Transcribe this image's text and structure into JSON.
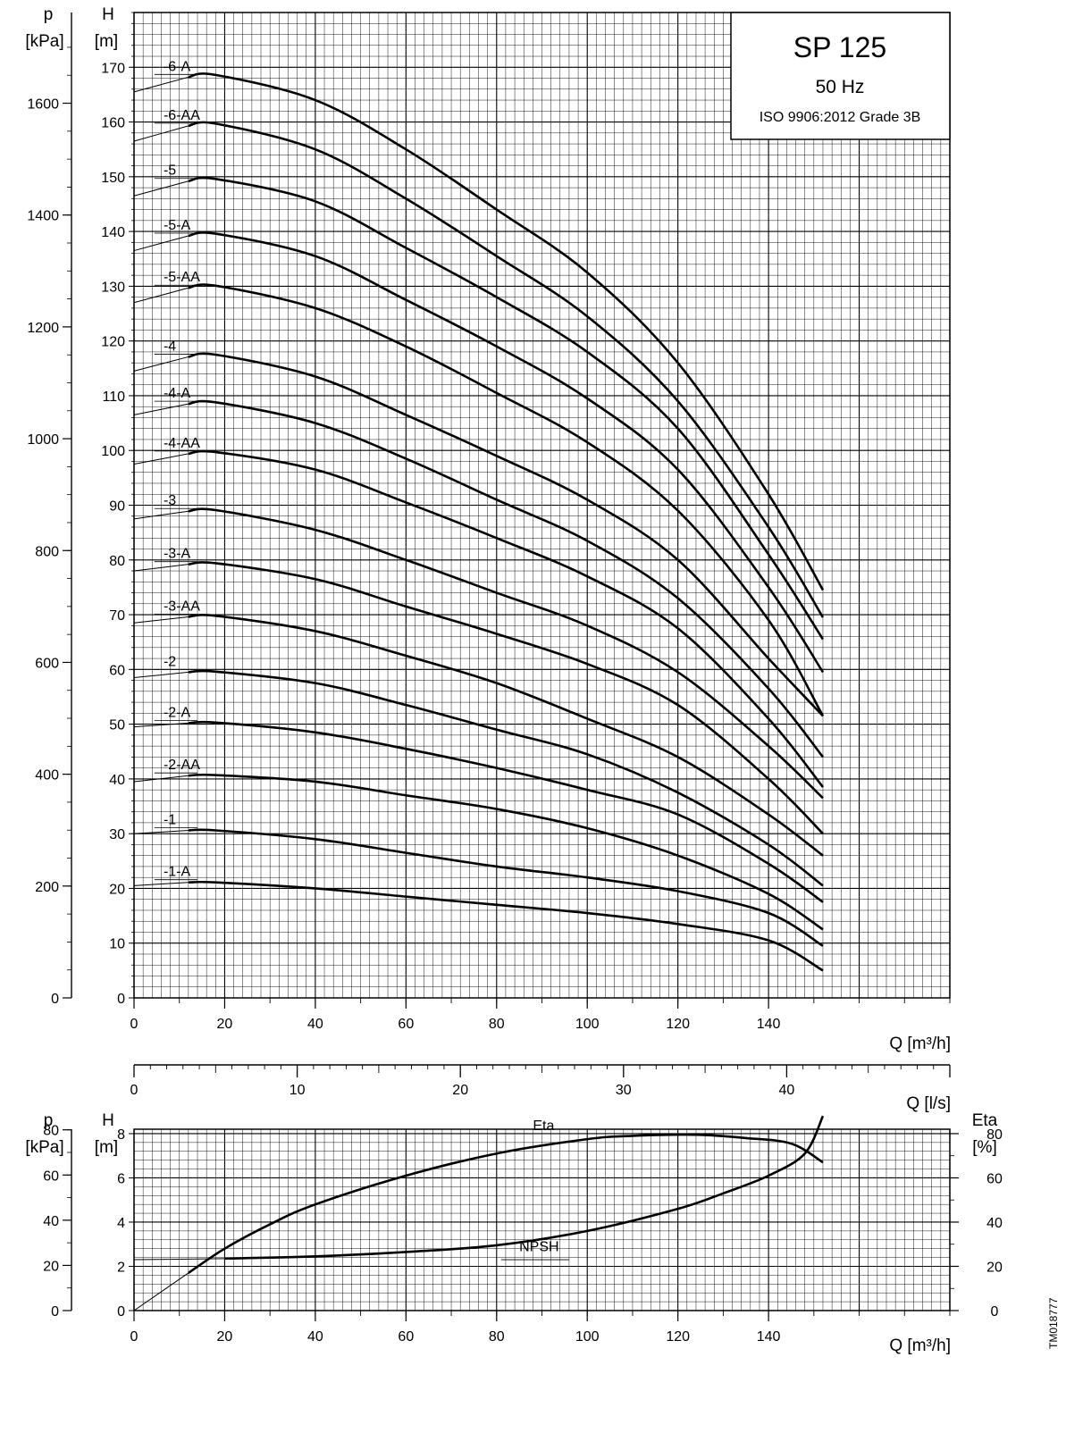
{
  "title_box": {
    "model": "SP 125",
    "frequency": "50 Hz",
    "standard": "ISO 9906:2012 Grade 3B"
  },
  "drawing_code": "TM018777",
  "axes": {
    "top": {
      "left_pressure": {
        "symbol": "p",
        "unit": "[kPa]",
        "ticks": [
          0,
          200,
          400,
          600,
          800,
          1000,
          1200,
          1400,
          1600
        ]
      },
      "head": {
        "symbol": "H",
        "unit": "[m]",
        "ticks": [
          0,
          10,
          20,
          30,
          40,
          50,
          60,
          70,
          80,
          90,
          100,
          110,
          120,
          130,
          140,
          150,
          160,
          170
        ],
        "range": [
          0,
          180
        ]
      },
      "x_flow": {
        "label": "Q [m³/h]",
        "ticks": [
          0,
          20,
          40,
          60,
          80,
          100,
          120,
          140
        ],
        "range": [
          0,
          180
        ]
      }
    },
    "middle": {
      "x_flow_ls": {
        "label": "Q [l/s]",
        "ticks": [
          0,
          10,
          20,
          30,
          40
        ],
        "range": [
          0,
          50
        ]
      }
    },
    "bottom": {
      "left_pressure": {
        "symbol": "p",
        "unit": "[kPa]",
        "ticks": [
          0,
          20,
          40,
          60,
          80
        ]
      },
      "head": {
        "symbol": "H",
        "unit": "[m]",
        "ticks": [
          0,
          2,
          4,
          6,
          8
        ],
        "range": [
          0,
          8.2
        ]
      },
      "right_eta": {
        "symbol": "Eta",
        "unit": "[%]",
        "ticks": [
          0,
          20,
          40,
          60,
          80
        ],
        "range": [
          0,
          82
        ]
      },
      "x_flow": {
        "label": "Q [m³/h]",
        "ticks": [
          0,
          20,
          40,
          60,
          80,
          100,
          120,
          140
        ],
        "range": [
          0,
          180
        ]
      }
    }
  },
  "chart_data": [
    {
      "type": "line",
      "grid": true,
      "xlabel": "Q [m³/h]",
      "ylabel": "H [m]",
      "xlim": [
        0,
        180
      ],
      "ylim": [
        0,
        180
      ],
      "series": [
        {
          "name": "-6-A",
          "points": [
            [
              0,
              165.5
            ],
            [
              12,
              168.2
            ],
            [
              18,
              168.6
            ],
            [
              40,
              164
            ],
            [
              60,
              155
            ],
            [
              80,
              144
            ],
            [
              100,
              132.5
            ],
            [
              120,
              116
            ],
            [
              140,
              92
            ],
            [
              152,
              74.5
            ]
          ]
        },
        {
          "name": "-6-AA",
          "points": [
            [
              0,
              156.5
            ],
            [
              12,
              159.3
            ],
            [
              18,
              159.7
            ],
            [
              40,
              155
            ],
            [
              60,
              146
            ],
            [
              80,
              135.5
            ],
            [
              100,
              124.5
            ],
            [
              120,
              109
            ],
            [
              140,
              86
            ],
            [
              152,
              69.5
            ]
          ]
        },
        {
          "name": "-5",
          "points": [
            [
              0,
              146.5
            ],
            [
              12,
              149.2
            ],
            [
              18,
              149.6
            ],
            [
              40,
              145.5
            ],
            [
              60,
              137
            ],
            [
              80,
              128
            ],
            [
              100,
              118
            ],
            [
              120,
              104
            ],
            [
              140,
              81
            ],
            [
              152,
              65.5
            ]
          ]
        },
        {
          "name": "-5-A",
          "points": [
            [
              0,
              136.5
            ],
            [
              12,
              139.2
            ],
            [
              18,
              139.6
            ],
            [
              40,
              135.5
            ],
            [
              60,
              127.5
            ],
            [
              80,
              119
            ],
            [
              100,
              109.5
            ],
            [
              120,
              96.5
            ],
            [
              140,
              75
            ],
            [
              152,
              59.5
            ]
          ]
        },
        {
          "name": "-5-AA",
          "points": [
            [
              0,
              127
            ],
            [
              12,
              129.7
            ],
            [
              18,
              130.1
            ],
            [
              40,
              126
            ],
            [
              60,
              119
            ],
            [
              80,
              110.5
            ],
            [
              100,
              101.5
            ],
            [
              120,
              89
            ],
            [
              140,
              69
            ],
            [
              152,
              51.5
            ]
          ]
        },
        {
          "name": "-4",
          "points": [
            [
              0,
              114.5
            ],
            [
              12,
              117.1
            ],
            [
              18,
              117.5
            ],
            [
              40,
              113.5
            ],
            [
              60,
              106.5
            ],
            [
              80,
              99
            ],
            [
              100,
              91
            ],
            [
              120,
              80
            ],
            [
              140,
              62
            ],
            [
              152,
              51.5
            ]
          ]
        },
        {
          "name": "-4-A",
          "points": [
            [
              0,
              106.5
            ],
            [
              12,
              108.5
            ],
            [
              18,
              108.8
            ],
            [
              40,
              105
            ],
            [
              60,
              98.5
            ],
            [
              80,
              91
            ],
            [
              100,
              83.5
            ],
            [
              120,
              73
            ],
            [
              140,
              56.5
            ],
            [
              152,
              44
            ]
          ]
        },
        {
          "name": "-4-AA",
          "points": [
            [
              0,
              97.5
            ],
            [
              12,
              99.4
            ],
            [
              18,
              99.7
            ],
            [
              40,
              96.5
            ],
            [
              60,
              90.5
            ],
            [
              80,
              84
            ],
            [
              100,
              77
            ],
            [
              120,
              67.5
            ],
            [
              140,
              51
            ],
            [
              152,
              38.5
            ]
          ]
        },
        {
          "name": "-3",
          "points": [
            [
              0,
              87.5
            ],
            [
              12,
              88.9
            ],
            [
              18,
              89.1
            ],
            [
              40,
              85.5
            ],
            [
              60,
              80
            ],
            [
              80,
              74
            ],
            [
              100,
              68
            ],
            [
              120,
              59.5
            ],
            [
              140,
              46
            ],
            [
              152,
              36.5
            ]
          ]
        },
        {
          "name": "-3-A",
          "points": [
            [
              0,
              78
            ],
            [
              12,
              79.2
            ],
            [
              18,
              79.4
            ],
            [
              40,
              76.5
            ],
            [
              60,
              71.5
            ],
            [
              80,
              66.5
            ],
            [
              100,
              61
            ],
            [
              120,
              53.5
            ],
            [
              140,
              40
            ],
            [
              152,
              30
            ]
          ]
        },
        {
          "name": "-3-AA",
          "points": [
            [
              0,
              68.5
            ],
            [
              12,
              69.6
            ],
            [
              18,
              69.8
            ],
            [
              40,
              67
            ],
            [
              60,
              62.5
            ],
            [
              80,
              57.5
            ],
            [
              100,
              51
            ],
            [
              120,
              44
            ],
            [
              140,
              33.5
            ],
            [
              152,
              26
            ]
          ]
        },
        {
          "name": "-2",
          "points": [
            [
              0,
              58.5
            ],
            [
              12,
              59.5
            ],
            [
              18,
              59.6
            ],
            [
              40,
              57.5
            ],
            [
              60,
              53.5
            ],
            [
              80,
              49
            ],
            [
              100,
              44.5
            ],
            [
              120,
              37.5
            ],
            [
              140,
              28
            ],
            [
              152,
              20.5
            ]
          ]
        },
        {
          "name": "-2-A",
          "points": [
            [
              0,
              49.5
            ],
            [
              12,
              50.2
            ],
            [
              18,
              50.3
            ],
            [
              40,
              48.5
            ],
            [
              60,
              45.5
            ],
            [
              80,
              42
            ],
            [
              100,
              38
            ],
            [
              120,
              33.5
            ],
            [
              140,
              24.5
            ],
            [
              152,
              17.5
            ]
          ]
        },
        {
          "name": "-2-AA",
          "points": [
            [
              0,
              39.5
            ],
            [
              12,
              40.6
            ],
            [
              18,
              40.7
            ],
            [
              40,
              39.5
            ],
            [
              60,
              37
            ],
            [
              80,
              34.5
            ],
            [
              100,
              31
            ],
            [
              120,
              26
            ],
            [
              140,
              19
            ],
            [
              152,
              12.5
            ]
          ]
        },
        {
          "name": "-1",
          "points": [
            [
              0,
              30
            ],
            [
              12,
              30.6
            ],
            [
              18,
              30.6
            ],
            [
              40,
              29
            ],
            [
              60,
              26.5
            ],
            [
              80,
              24
            ],
            [
              100,
              22
            ],
            [
              120,
              19.5
            ],
            [
              140,
              15.5
            ],
            [
              152,
              9.5
            ]
          ]
        },
        {
          "name": "-1-A",
          "points": [
            [
              0,
              20.5
            ],
            [
              12,
              21.1
            ],
            [
              18,
              21.1
            ],
            [
              40,
              20
            ],
            [
              60,
              18.5
            ],
            [
              80,
              17
            ],
            [
              100,
              15.5
            ],
            [
              120,
              13.5
            ],
            [
              140,
              10.5
            ],
            [
              152,
              5
            ]
          ]
        }
      ]
    },
    {
      "type": "line",
      "grid": true,
      "xlabel": "Q [m³/h]",
      "ylabel": "H [m]",
      "y2label": "Eta [%]",
      "xlim": [
        0,
        180
      ],
      "ylim": [
        0,
        8.2
      ],
      "y2lim": [
        0,
        82
      ],
      "series": [
        {
          "name": "Eta",
          "axis": "right",
          "points": [
            [
              0,
              0
            ],
            [
              12,
              17
            ],
            [
              20,
              28
            ],
            [
              30,
              39
            ],
            [
              40,
              48
            ],
            [
              60,
              61
            ],
            [
              80,
              71
            ],
            [
              100,
              77.5
            ],
            [
              110,
              79
            ],
            [
              124,
              79.5
            ],
            [
              135,
              78
            ],
            [
              145,
              75.5
            ],
            [
              152,
              67
            ]
          ]
        },
        {
          "name": "NPSH",
          "axis": "left",
          "points": [
            [
              0,
              2.3
            ],
            [
              20,
              2.35
            ],
            [
              40,
              2.45
            ],
            [
              60,
              2.65
            ],
            [
              80,
              2.95
            ],
            [
              100,
              3.6
            ],
            [
              120,
              4.6
            ],
            [
              130,
              5.3
            ],
            [
              140,
              6.1
            ],
            [
              148,
              7.1
            ],
            [
              152,
              8.8
            ]
          ]
        }
      ]
    }
  ]
}
